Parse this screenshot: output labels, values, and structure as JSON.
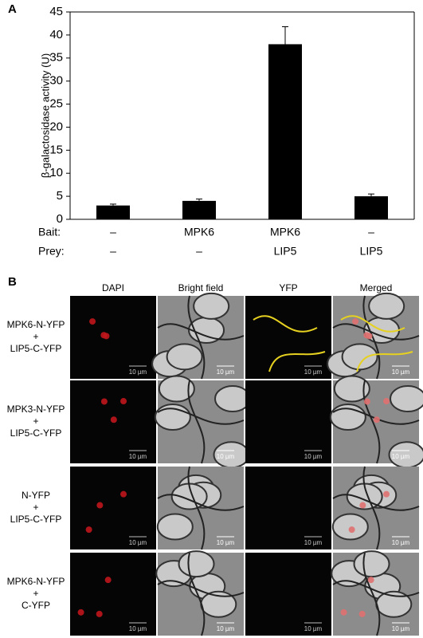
{
  "panel_a_label": "A",
  "chart_data": {
    "type": "bar",
    "ylabel": "β-galactosidase activity (U)",
    "categories": [
      null,
      null,
      null,
      null
    ],
    "x_rows": [
      {
        "label": "Bait:",
        "values": [
          "–",
          "MPK6",
          "MPK6",
          "–"
        ]
      },
      {
        "label": "Prey:",
        "values": [
          "–",
          "–",
          "LIP5",
          "LIP5"
        ]
      }
    ],
    "values": [
      3,
      4,
      38,
      5
    ],
    "errors": [
      0.3,
      0.4,
      3.8,
      0.5
    ],
    "color": "#000000",
    "ylim": [
      0,
      45
    ],
    "yticks": [
      0,
      5,
      10,
      15,
      20,
      25,
      30,
      35,
      40,
      45
    ]
  },
  "panel_b": {
    "label": "B",
    "columns": [
      "DAPI",
      "Bright field",
      "YFP",
      "Merged"
    ],
    "rows": [
      {
        "lines": [
          "MPK6-N-YFP",
          "+",
          "LIP5-C-YFP"
        ]
      },
      {
        "lines": [
          "MPK3-N-YFP",
          "+",
          "LIP5-C-YFP"
        ]
      },
      {
        "lines": [
          "N-YFP",
          "+",
          "LIP5-C-YFP"
        ]
      },
      {
        "lines": [
          "MPK6-N-YFP",
          "+",
          "C-YFP"
        ]
      }
    ],
    "scale_bar": "10 µm"
  }
}
